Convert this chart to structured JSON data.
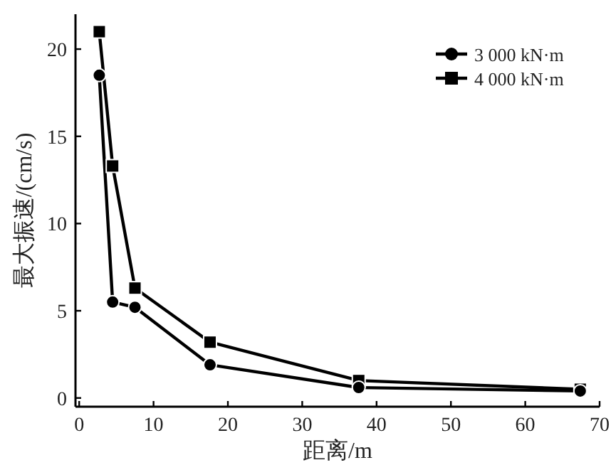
{
  "chart_data": {
    "type": "line",
    "xlabel": "距离/m",
    "ylabel": "最大振速/(cm/s)",
    "xlim": [
      -0.5,
      70
    ],
    "xticks": [
      0,
      10,
      20,
      30,
      40,
      50,
      60,
      70
    ],
    "ylim": [
      -0.5,
      22
    ],
    "yticks": [
      0,
      5,
      10,
      15,
      20
    ],
    "grid": false,
    "legend": "top right",
    "line_style": "solid",
    "series": [
      {
        "name": "3 000 kN·m",
        "color": "#000000",
        "marker": "circle",
        "x": [
          2.7,
          4.5,
          7.5,
          17.6,
          37.6,
          67.4
        ],
        "values": [
          18.5,
          5.5,
          5.2,
          1.9,
          0.6,
          0.4
        ]
      },
      {
        "name": "4 000 kN·m",
        "color": "#000000",
        "marker": "square",
        "x": [
          2.7,
          4.5,
          7.5,
          17.6,
          37.6,
          67.4
        ],
        "values": [
          21.0,
          13.3,
          6.3,
          3.2,
          1.0,
          0.5
        ]
      }
    ]
  }
}
